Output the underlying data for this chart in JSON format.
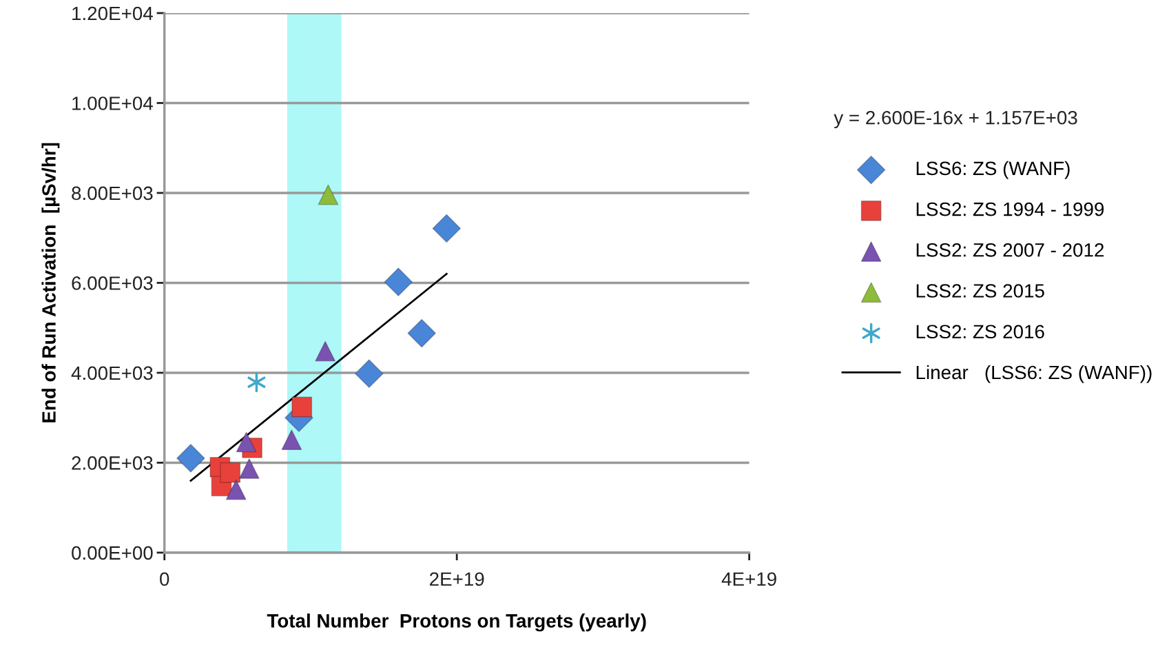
{
  "chart_data": {
    "type": "scatter",
    "xlabel": "Total Number  Protons on Targets (yearly)",
    "ylabel": "End of Run Activation  [µSv/hr]",
    "xlim": [
      0,
      4e+19
    ],
    "xticks": [
      {
        "value": 0,
        "label": "0"
      },
      {
        "value": 2e+19,
        "label": "2E+19"
      },
      {
        "value": 4e+19,
        "label": "4E+19"
      }
    ],
    "ylim": [
      0,
      12000
    ],
    "yticks": [
      {
        "value": 0,
        "label": "0.00E+00"
      },
      {
        "value": 2000,
        "label": "2.00E+03"
      },
      {
        "value": 4000,
        "label": "4.00E+03"
      },
      {
        "value": 6000,
        "label": "6.00E+03"
      },
      {
        "value": 8000,
        "label": "8.00E+03"
      },
      {
        "value": 10000,
        "label": "1.00E+04"
      },
      {
        "value": 12000,
        "label": "1.20E+04"
      }
    ],
    "grid": "y",
    "legend": "right",
    "annotations": [
      "y = 2.600E-16x + 1.157E+03"
    ],
    "bands": [
      {
        "axis": "x",
        "from": 8.4e+18,
        "to": 1.21e+19,
        "color": "#aef8f8"
      }
    ],
    "series": [
      {
        "name": "LSS6: ZS (WANF)",
        "color": "#4a86d8",
        "marker": "diamond",
        "x": [
          1.8e+18,
          9.2e+18,
          1.4e+19,
          1.6e+19,
          1.76e+19,
          1.93e+19
        ],
        "values": [
          2100,
          3000,
          3980,
          6020,
          4880,
          7210
        ]
      },
      {
        "name": "LSS2: ZS 1994 - 1999",
        "color": "#e8413c",
        "marker": "square",
        "x": [
          3.8e+18,
          3.9e+18,
          4.5e+18,
          6e+18,
          9.4e+18
        ],
        "values": [
          1900,
          1480,
          1780,
          2330,
          3240
        ]
      },
      {
        "name": "LSS2: ZS 2007 - 2012",
        "color": "#7a52b0",
        "marker": "triangle",
        "x": [
          5.6e+18,
          5.8e+18,
          4.9e+18,
          8.7e+18,
          1.1e+19
        ],
        "values": [
          2460,
          1870,
          1400,
          2510,
          4480
        ]
      },
      {
        "name": "LSS2: ZS 2015",
        "color": "#8dbb3a",
        "marker": "triangle",
        "x": [
          1.12e+19
        ],
        "values": [
          7960
        ]
      },
      {
        "name": "LSS2: ZS 2016",
        "color": "#3fa9c9",
        "marker": "cross",
        "x": [
          6.3e+18
        ],
        "values": [
          3790
        ]
      },
      {
        "name": "Linear   (LSS6: ZS (WANF))",
        "type": "line",
        "color": "#000000",
        "marker": "none",
        "x": [
          1.8e+18,
          1.93e+19
        ],
        "values": [
          1600,
          6200
        ]
      }
    ]
  }
}
